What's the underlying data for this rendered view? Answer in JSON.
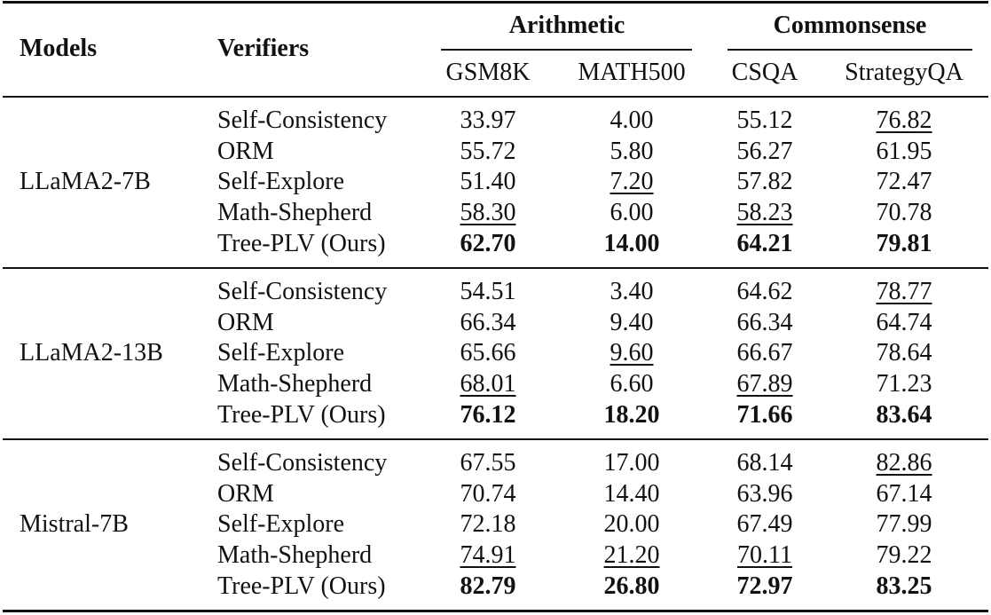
{
  "header": {
    "models": "Models",
    "verifiers": "Verifiers",
    "groups": [
      {
        "title": "Arithmetic",
        "columns": [
          "GSM8K",
          "MATH500"
        ]
      },
      {
        "title": "Commonsense",
        "columns": [
          "CSQA",
          "StrategyQA"
        ]
      }
    ]
  },
  "table": {
    "groups": [
      {
        "model": "LLaMA2-7B",
        "bold_row": 4,
        "underline_rows": [
          3,
          2,
          3,
          0
        ],
        "rows": [
          {
            "verifier": "Self-Consistency",
            "values": [
              "33.97",
              "4.00",
              "55.12",
              "76.82"
            ]
          },
          {
            "verifier": "ORM",
            "values": [
              "55.72",
              "5.80",
              "56.27",
              "61.95"
            ]
          },
          {
            "verifier": "Self-Explore",
            "values": [
              "51.40",
              "7.20",
              "57.82",
              "72.47"
            ]
          },
          {
            "verifier": "Math-Shepherd",
            "values": [
              "58.30",
              "6.00",
              "58.23",
              "70.78"
            ]
          },
          {
            "verifier": "Tree-PLV (Ours)",
            "values": [
              "62.70",
              "14.00",
              "64.21",
              "79.81"
            ]
          }
        ]
      },
      {
        "model": "LLaMA2-13B",
        "bold_row": 4,
        "underline_rows": [
          3,
          2,
          3,
          0
        ],
        "rows": [
          {
            "verifier": "Self-Consistency",
            "values": [
              "54.51",
              "3.40",
              "64.62",
              "78.77"
            ]
          },
          {
            "verifier": "ORM",
            "values": [
              "66.34",
              "9.40",
              "66.34",
              "64.74"
            ]
          },
          {
            "verifier": "Self-Explore",
            "values": [
              "65.66",
              "9.60",
              "66.67",
              "78.64"
            ]
          },
          {
            "verifier": "Math-Shepherd",
            "values": [
              "68.01",
              "6.60",
              "67.89",
              "71.23"
            ]
          },
          {
            "verifier": "Tree-PLV (Ours)",
            "values": [
              "76.12",
              "18.20",
              "71.66",
              "83.64"
            ]
          }
        ]
      },
      {
        "model": "Mistral-7B",
        "bold_row": 4,
        "underline_rows": [
          3,
          3,
          3,
          0
        ],
        "rows": [
          {
            "verifier": "Self-Consistency",
            "values": [
              "67.55",
              "17.00",
              "68.14",
              "82.86"
            ]
          },
          {
            "verifier": "ORM",
            "values": [
              "70.74",
              "14.40",
              "63.96",
              "67.14"
            ]
          },
          {
            "verifier": "Self-Explore",
            "values": [
              "72.18",
              "20.00",
              "67.49",
              "77.99"
            ]
          },
          {
            "verifier": "Math-Shepherd",
            "values": [
              "74.91",
              "21.20",
              "70.11",
              "79.22"
            ]
          },
          {
            "verifier": "Tree-PLV (Ours)",
            "values": [
              "82.79",
              "26.80",
              "72.97",
              "83.25"
            ]
          }
        ]
      }
    ]
  }
}
